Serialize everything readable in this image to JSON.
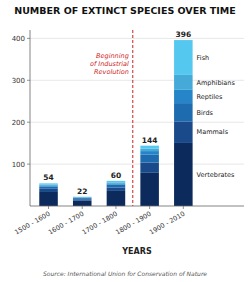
{
  "chart_data": {
    "type": "bar",
    "stacked": true,
    "grid": true,
    "title": "NUMBER OF EXTINCT SPECIES OVER TIME",
    "xlabel": "YEARS",
    "source": "Source: International Union for Conservation of Nature",
    "categories": [
      "1500 - 1600",
      "1600 - 1700",
      "1700 - 1800",
      "1800 - 1900",
      "1900 - 2010"
    ],
    "series": [
      {
        "name": "Vertebrates",
        "color": "#0d2a5c",
        "values": [
          33.48,
          12.76,
          36,
          79.2,
          150.48
        ]
      },
      {
        "name": "Mammals",
        "color": "#1a4a8a",
        "values": [
          7.56,
          3.3,
          7.8,
          24.48,
          51.48
        ]
      },
      {
        "name": "Birds",
        "color": "#1e6bb0",
        "values": [
          5.4,
          2.64,
          7.2,
          18.72,
          43.56
        ]
      },
      {
        "name": "Reptiles",
        "color": "#2585c8",
        "values": [
          2.7,
          1.32,
          3,
          8.64,
          31.68
        ]
      },
      {
        "name": "Amphibians",
        "color": "#45aad8",
        "values": [
          2.16,
          1.1,
          2.4,
          5.76,
          35.64
        ]
      },
      {
        "name": "Fish",
        "color": "#55c8ef",
        "values": [
          2.7,
          0.88,
          3.6,
          7.2,
          83.16
        ]
      }
    ],
    "totals": [
      54,
      22,
      60,
      144,
      396
    ],
    "annotations": [
      {
        "text": "Beginning\nof Industrial\nRevolution",
        "after": "1700 - 1800",
        "color": "#cc2222"
      }
    ],
    "ylim": [
      0,
      420
    ],
    "yticks": [
      100,
      200,
      300,
      400
    ]
  }
}
